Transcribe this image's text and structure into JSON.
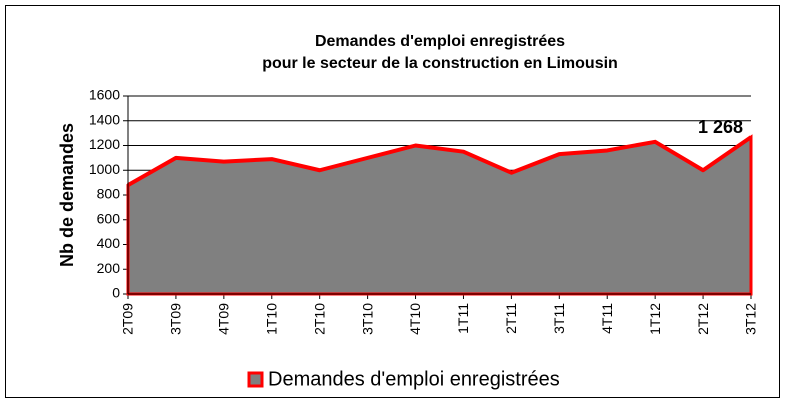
{
  "chart_data": {
    "type": "area",
    "title": [
      "Demandes d'emploi enregistrées",
      "pour le secteur de la construction en Limousin"
    ],
    "y_label": "Nb de demandes",
    "categories": [
      "2T09",
      "3T09",
      "4T09",
      "1T10",
      "2T10",
      "3T10",
      "4T10",
      "1T11",
      "2T11",
      "3T11",
      "4T11",
      "1T12",
      "2T12",
      "3T12"
    ],
    "series": [
      {
        "name": "Demandes d'emploi enregistrées",
        "color": "#808080",
        "line_color": "#ff0000",
        "values": [
          880,
          1100,
          1070,
          1090,
          1000,
          1100,
          1200,
          1150,
          980,
          1130,
          1160,
          1230,
          1000,
          1268
        ],
        "value_labels": [
          null,
          null,
          null,
          null,
          null,
          null,
          null,
          null,
          null,
          null,
          null,
          null,
          null,
          "1 268"
        ]
      }
    ],
    "ylim": [
      0,
      1600
    ],
    "yticks": [
      0,
      200,
      400,
      600,
      800,
      1000,
      1200,
      1400,
      1600
    ],
    "grid": true,
    "legend": "bottom"
  }
}
